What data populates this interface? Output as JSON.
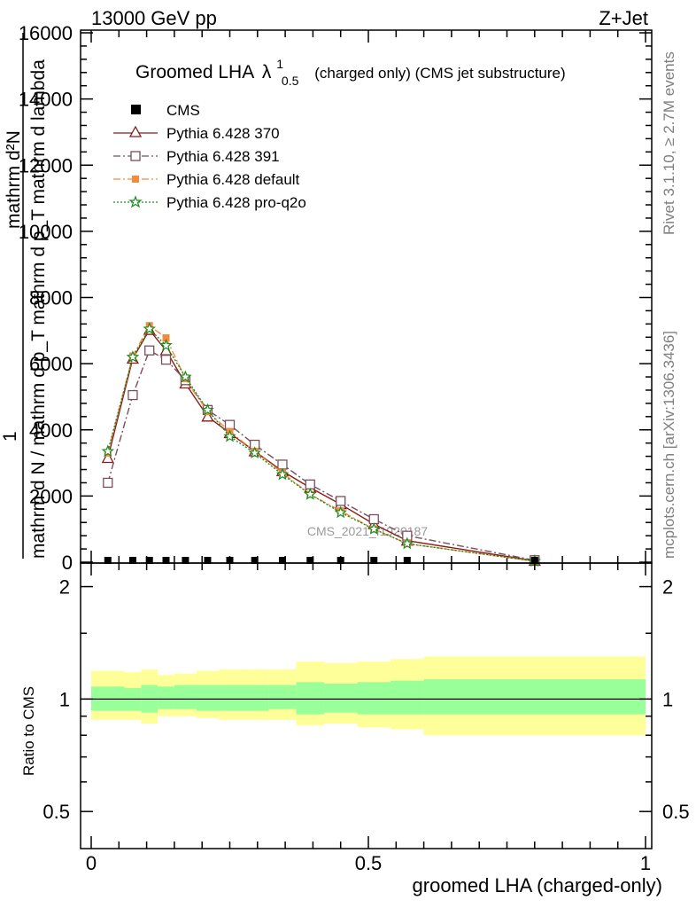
{
  "header": {
    "left": "13000 GeV pp",
    "right": "Z+Jet"
  },
  "side_notes": {
    "rivet": "Rivet 3.1.10, ≥ 2.7M events",
    "mcplots": "mcplots.cern.ch [arXiv:1306.3436]"
  },
  "watermark": "CMS_2021_I1920187",
  "chart_data": [
    {
      "type": "line",
      "title_main": "Groomed LHA",
      "title_symbol": "λ",
      "title_sup": "1",
      "title_sub": "0.5",
      "title_rest": "(charged only) (CMS jet substructure)",
      "ylabel_top": "mathrm d²N",
      "ylabel_bottom_lines": [
        "1",
        "mathrm d N / mathrm d p_T mathrm d p_T mathrm d lambda"
      ],
      "xlim": [
        0,
        1
      ],
      "ylim": [
        0,
        16000
      ],
      "yticks": [
        0,
        2000,
        4000,
        6000,
        8000,
        10000,
        12000,
        14000,
        16000
      ],
      "ytick_labels": [
        "0",
        "2000",
        "4000",
        "6000",
        "8000",
        "10000",
        "12000",
        "14000",
        "16000"
      ],
      "cms_points": {
        "name": "CMS",
        "x": [
          0.03,
          0.075,
          0.105,
          0.135,
          0.17,
          0.21,
          0.25,
          0.295,
          0.345,
          0.395,
          0.45,
          0.51,
          0.57,
          0.8
        ],
        "y": [
          0,
          0,
          0,
          0,
          0,
          0,
          0,
          0,
          0,
          0,
          0,
          0,
          0,
          0
        ]
      },
      "series": [
        {
          "name": "Pythia 6.428 370",
          "color": "#8b1a1a",
          "marker": "triangle-open",
          "dash": "solid",
          "x": [
            0.03,
            0.075,
            0.105,
            0.135,
            0.17,
            0.21,
            0.25,
            0.295,
            0.345,
            0.395,
            0.45,
            0.51,
            0.57,
            0.8
          ],
          "y": [
            3150,
            6150,
            7020,
            6400,
            5400,
            4400,
            3900,
            3350,
            2750,
            2250,
            1750,
            1150,
            650,
            40
          ]
        },
        {
          "name": "Pythia 6.428 391",
          "color": "#7a4f5c",
          "marker": "square-open",
          "dash": "dashdot",
          "x": [
            0.03,
            0.075,
            0.105,
            0.135,
            0.17,
            0.21,
            0.25,
            0.295,
            0.345,
            0.395,
            0.45,
            0.51,
            0.57,
            0.8
          ],
          "y": [
            2400,
            5050,
            6400,
            6120,
            5500,
            4600,
            4150,
            3550,
            2950,
            2350,
            1850,
            1300,
            800,
            60
          ]
        },
        {
          "name": "Pythia 6.428 default",
          "color": "#f58a3c",
          "marker": "square-filled",
          "dash": "dashdot",
          "x": [
            0.03,
            0.075,
            0.105,
            0.135,
            0.17,
            0.21,
            0.25,
            0.295,
            0.345,
            0.395,
            0.45,
            0.51,
            0.57,
            0.8
          ],
          "y": [
            3300,
            6230,
            7150,
            6780,
            5550,
            4550,
            3950,
            3350,
            2700,
            2050,
            1550,
            1000,
            560,
            30
          ]
        },
        {
          "name": "Pythia 6.428 pro-q2o",
          "color": "#1f8a1f",
          "marker": "star",
          "dash": "dotted",
          "x": [
            0.03,
            0.075,
            0.105,
            0.135,
            0.17,
            0.21,
            0.25,
            0.295,
            0.345,
            0.395,
            0.45,
            0.51,
            0.57,
            0.8
          ],
          "y": [
            3350,
            6200,
            7050,
            6550,
            5600,
            4600,
            3800,
            3300,
            2650,
            2050,
            1500,
            1000,
            560,
            30
          ]
        }
      ]
    },
    {
      "type": "area",
      "ylabel": "Ratio to CMS",
      "xlabel": "groomed LHA (charged-only)",
      "xlim": [
        0,
        1
      ],
      "xticks": [
        0,
        0.5,
        1
      ],
      "xtick_labels": [
        "0",
        "0.5",
        "1"
      ],
      "ylim": [
        0.4,
        2.3
      ],
      "yscale": "log",
      "yticks": [
        0.5,
        1,
        2
      ],
      "ytick_labels": [
        "0.5",
        "1",
        "2"
      ],
      "reference_line": 1,
      "bands": {
        "bin_edges": [
          0,
          0.06,
          0.09,
          0.12,
          0.15,
          0.19,
          0.23,
          0.27,
          0.32,
          0.37,
          0.42,
          0.48,
          0.54,
          0.6,
          1.0
        ],
        "inner_color": "#99ff99",
        "outer_color": "#ffff99",
        "inner_low": [
          0.93,
          0.93,
          0.92,
          0.94,
          0.94,
          0.93,
          0.93,
          0.93,
          0.94,
          0.91,
          0.92,
          0.91,
          0.91,
          0.91
        ],
        "inner_high": [
          1.08,
          1.07,
          1.09,
          1.08,
          1.09,
          1.09,
          1.09,
          1.09,
          1.09,
          1.11,
          1.1,
          1.11,
          1.12,
          1.13
        ],
        "outer_low": [
          0.88,
          0.88,
          0.86,
          0.9,
          0.9,
          0.89,
          0.88,
          0.88,
          0.88,
          0.85,
          0.86,
          0.84,
          0.83,
          0.8
        ],
        "outer_high": [
          1.19,
          1.18,
          1.2,
          1.16,
          1.17,
          1.19,
          1.2,
          1.2,
          1.2,
          1.26,
          1.25,
          1.26,
          1.28,
          1.3
        ]
      }
    }
  ]
}
